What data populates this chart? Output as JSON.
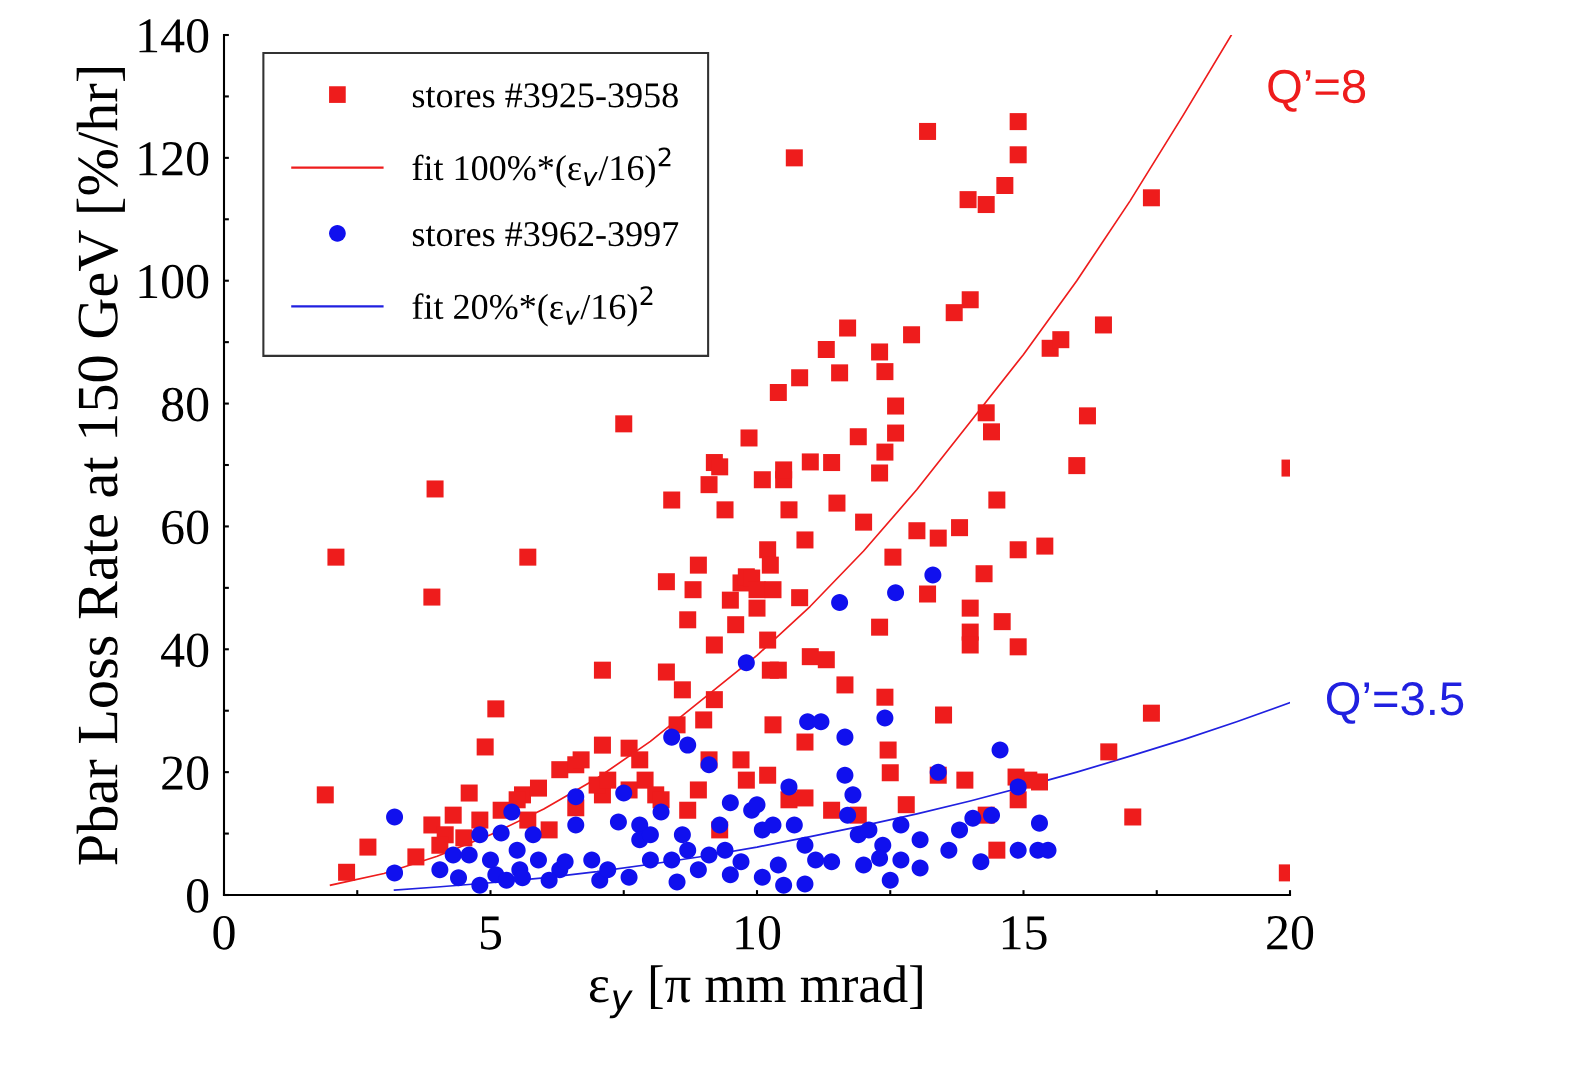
{
  "chart_data": {
    "type": "scatter",
    "xlabel": "ε$_{y}$ [π mm mrad]",
    "ylabel": "Pbar Loss Rate at 150 GeV [%/hr]",
    "xlim": [
      0,
      20
    ],
    "ylim": [
      0,
      140
    ],
    "xticks": [
      0,
      {
        "value": 2.5,
        "label": null
      },
      5,
      {
        "value": 7.5,
        "label": null
      },
      10,
      {
        "value": 12.5,
        "label": null
      },
      15,
      {
        "value": 17.5,
        "label": null
      },
      20
    ],
    "yticks": [
      0,
      {
        "value": 10,
        "label": null
      },
      20,
      {
        "value": 30,
        "label": null
      },
      40,
      {
        "value": 50,
        "label": null
      },
      60,
      {
        "value": 70,
        "label": null
      },
      80,
      {
        "value": 90,
        "label": null
      },
      100,
      {
        "value": 110,
        "label": null
      },
      120,
      {
        "value": 130,
        "label": null
      },
      140
    ],
    "grid": false,
    "legend": "top left",
    "annotations": [
      {
        "text": "Q’=8",
        "x": 18.9,
        "y": 140
      },
      {
        "text": "Q’=3.5",
        "x": 20,
        "y": 31.3
      }
    ],
    "series": [
      {
        "name": "stores #3925-3958",
        "marker": "square",
        "color": "#ee1c1c",
        "x": [
          1.9,
          2.1,
          2.3,
          2.7,
          3.96,
          3.9,
          3.9,
          3.6,
          4.15,
          4.6,
          4.9,
          5.1,
          5.7,
          5.6,
          5.9,
          6.3,
          6.6,
          6.7,
          7.1,
          7.1,
          7.1,
          7.5,
          7.6,
          7.8,
          7.9,
          8.1,
          8.3,
          8.4,
          8.3,
          8.5,
          8.6,
          8.7,
          8.8,
          8.9,
          9.2,
          9.1,
          9.2,
          9.3,
          9.4,
          9.2,
          9.0,
          9.1,
          9.5,
          9.6,
          9.7,
          9.85,
          9.8,
          9.9,
          10.0,
          10.0,
          10.1,
          10.2,
          10.25,
          10.3,
          10.4,
          10.5,
          10.5,
          10.6,
          10.7,
          10.8,
          10.8,
          10.9,
          11.0,
          10.9,
          10.2,
          10.25,
          10.4,
          10.3,
          11.0,
          11.3,
          11.4,
          11.5,
          11.55,
          11.7,
          11.3,
          11.65,
          11.9,
          12.0,
          12.3,
          12.4,
          12.4,
          12.3,
          12.6,
          12.6,
          12.55,
          12.3,
          12.4,
          12.46,
          12.5,
          12.9,
          13.0,
          13.2,
          13.4,
          13.2,
          13.5,
          13.7,
          13.8,
          14.0,
          13.96,
          14.3,
          14.0,
          14.0,
          14.0,
          14.26,
          14.3,
          14.4,
          14.5,
          14.65,
          14.6,
          14.9,
          14.9,
          14.9,
          14.9,
          15.4,
          15.5,
          15.7,
          16.0,
          16.2,
          16.5,
          16.6,
          17.05,
          17.4,
          17.4,
          19.95,
          20,
          4.05,
          4.3,
          4.5,
          4.8,
          5.2,
          5.5,
          5.7,
          6.1,
          6.6,
          7.0,
          7.2,
          7.6,
          8.2,
          8.7,
          8.9,
          9.3,
          9.7,
          9.8,
          10.2,
          10.6,
          10.9,
          11.4,
          11.9,
          12.8,
          13.4,
          13.9,
          14.3,
          14.5,
          14.9,
          15.1,
          15.3,
          14.86
        ],
        "values": [
          16.3,
          55,
          3.7,
          7.8,
          66.1,
          48.5,
          11.4,
          6.2,
          9.8,
          16.6,
          24.1,
          30.3,
          55,
          16.3,
          17.4,
          20.4,
          21.2,
          22,
          36.6,
          24.4,
          16.3,
          76.7,
          23.9,
          22,
          18.7,
          16.3,
          51,
          64.3,
          36.3,
          27.7,
          33.4,
          44.8,
          49.7,
          53.7,
          40.7,
          66.8,
          70.4,
          69.7,
          62.7,
          31.8,
          28.5,
          22,
          48,
          44,
          50.8,
          74.4,
          51.8,
          51.6,
          49.7,
          46.7,
          67.6,
          56.2,
          53.7,
          49.7,
          81.8,
          67.6,
          69.2,
          62.7,
          120,
          84.2,
          48.4,
          57.8,
          70.5,
          24.9,
          41.5,
          36.6,
          36.6,
          27.7,
          38.8,
          88.8,
          70.4,
          63.8,
          85,
          92.3,
          38.3,
          34.2,
          74.6,
          60.7,
          88.4,
          85.2,
          72.1,
          68.7,
          75.2,
          79.6,
          55,
          43.6,
          32.2,
          23.6,
          19.9,
          91.2,
          59.3,
          124.3,
          58.1,
          49,
          29.3,
          94.8,
          59.8,
          96.9,
          113.2,
          112.4,
          46.7,
          42.8,
          40.7,
          52.3,
          78.5,
          75.4,
          64.3,
          115.5,
          44.5,
          125.9,
          120.5,
          56.2,
          40.4,
          56.8,
          89,
          90.4,
          69.9,
          78,
          92.8,
          23.3,
          12.7,
          113.5,
          29.6,
          3.6,
          69.5,
          8.1,
          13,
          9.3,
          12.2,
          13.8,
          15.5,
          12.2,
          10.6,
          14.2,
          17.9,
          18.7,
          17.1,
          15.5,
          13.8,
          17.1,
          10.6,
          22,
          18.7,
          19.5,
          15.5,
          15.8,
          13.8,
          13,
          14.7,
          19.5,
          18.7,
          13,
          7.3,
          15.5,
          18.7,
          18.4,
          19.2
        ]
      },
      {
        "name": "fit 100%*(ε$_{v}$/16)$^{2}$",
        "type": "line",
        "line_style": "solid",
        "color": "#ee1c1c",
        "x": [
          2,
          3,
          4,
          5,
          6,
          7,
          8,
          9,
          10,
          11,
          12,
          13,
          14,
          15,
          16,
          17,
          18,
          18.9
        ],
        "values": [
          1.6,
          3.5,
          6.3,
          9.8,
          14,
          19,
          25,
          32,
          39,
          47,
          56,
          66,
          77,
          88,
          100,
          113,
          127,
          140
        ]
      },
      {
        "name": "stores #3962-3997",
        "marker": "circle",
        "color": "#1010ee",
        "x": [
          3.2,
          3.2,
          4.05,
          4.3,
          4.6,
          4.8,
          5.0,
          5.2,
          5.4,
          5.5,
          5.55,
          5.8,
          5.9,
          6.3,
          6.6,
          6.6,
          6.9,
          7.05,
          7.5,
          7.4,
          7.8,
          7.8,
          8.2,
          8.4,
          8.7,
          8.6,
          8.4,
          9.1,
          9.3,
          9.5,
          9.8,
          9.9,
          10.0,
          10.1,
          10.3,
          10.6,
          10.7,
          10.9,
          10.95,
          11.2,
          10.9,
          11.55,
          11.65,
          11.65,
          11.8,
          11.7,
          11.9,
          12.1,
          12.4,
          12.36,
          12.5,
          12.6,
          12.7,
          13.06,
          13.3,
          13.4,
          13.6,
          13.8,
          14.05,
          14.2,
          14.4,
          14.56,
          14.9,
          14.9,
          15.3,
          15.27,
          15.46,
          12.7,
          4.4,
          4.8,
          5.1,
          5.3,
          5.6,
          6.1,
          6.4,
          7.2,
          7.6,
          8.0,
          8.5,
          8.9,
          9.1,
          9.5,
          9.7,
          10.1,
          10.4,
          10.5,
          11.1,
          11.4,
          12.0,
          12.3,
          13.06,
          9.4,
          8.7,
          8.0
        ],
        "values": [
          12.7,
          3.6,
          4.1,
          6.5,
          6.5,
          9.8,
          5.7,
          10.1,
          13.5,
          7.3,
          4.1,
          9.8,
          5.7,
          4.1,
          16,
          11.4,
          5.7,
          2.4,
          16.6,
          11.9,
          11.4,
          9,
          13.5,
          25.7,
          24.4,
          9.8,
          5.7,
          21.2,
          11.4,
          15,
          37.8,
          13.8,
          14.7,
          10.6,
          11.4,
          17.6,
          11.4,
          8.1,
          28.2,
          28.2,
          1.8,
          47.6,
          25.7,
          19.5,
          16.3,
          13,
          9.8,
          10.6,
          28.8,
          8.1,
          2.4,
          49.2,
          5.7,
          9,
          52.1,
          20,
          7.3,
          10.6,
          12.5,
          5.4,
          13,
          23.6,
          17.6,
          7.3,
          11.7,
          7.3,
          7.3,
          11.4,
          2.8,
          1.6,
          3.3,
          2.4,
          2.8,
          2.4,
          5.4,
          4.1,
          2.9,
          5.7,
          2.1,
          4.1,
          6.5,
          3.3,
          5.4,
          2.9,
          4.9,
          1.6,
          5.7,
          5.4,
          4.9,
          6,
          4.4,
          7.3,
          7.3,
          9.8
        ]
      },
      {
        "name": "fit 20%*(ε$_{v}$/16)$^{2}$",
        "type": "line",
        "line_style": "solid",
        "color": "#2020e0",
        "x": [
          3.2,
          4,
          5,
          6,
          7,
          8,
          9,
          10,
          11,
          12,
          13,
          14,
          15,
          16,
          17,
          18,
          19,
          20
        ],
        "values": [
          0.8,
          1.3,
          2,
          2.8,
          3.8,
          5,
          6.3,
          7.8,
          9.5,
          11.3,
          13.2,
          15.3,
          17.6,
          20,
          22.6,
          25.3,
          28.2,
          31.3
        ]
      }
    ]
  }
}
